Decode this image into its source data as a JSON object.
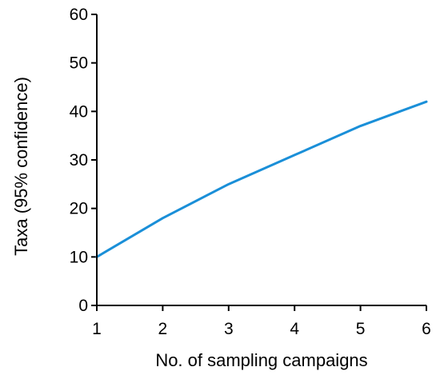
{
  "chart_data": {
    "type": "line",
    "xlabel": "No. of sampling campaigns",
    "ylabel": "Taxa (95% confidence)",
    "xlim": [
      1,
      6
    ],
    "ylim": [
      0,
      60
    ],
    "xticks": [
      1,
      2,
      3,
      4,
      5,
      6
    ],
    "yticks": [
      0,
      10,
      20,
      30,
      40,
      50,
      60
    ],
    "grid": false,
    "series": [
      {
        "color": "#1a8fd8",
        "x": [
          1,
          2,
          3,
          4,
          5,
          6
        ],
        "y": [
          10,
          18,
          25,
          31,
          37,
          42
        ]
      }
    ]
  }
}
